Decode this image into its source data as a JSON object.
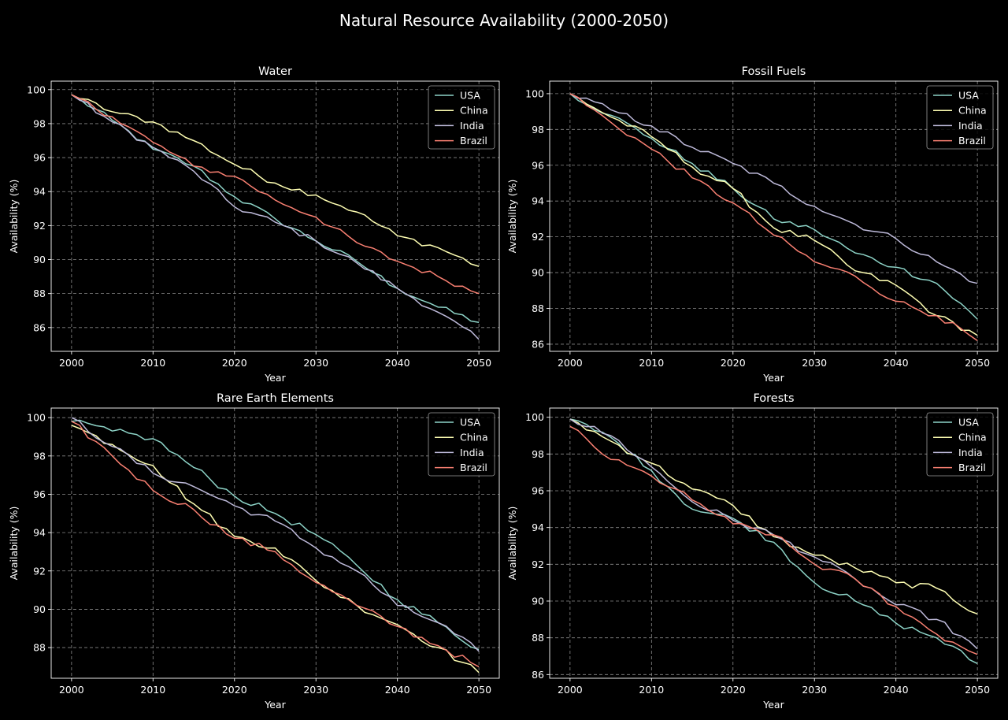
{
  "figure_title": "Natural Resource Availability (2000-2050)",
  "colors": {
    "background": "#000000",
    "text": "#ffffff",
    "grid": "#8a8a8a",
    "USA": "#8dd3c7",
    "China": "#ffffb3",
    "India": "#bebada",
    "Brazil": "#fa8072"
  },
  "chart_data": [
    {
      "type": "line",
      "title": "Water",
      "xlabel": "Year",
      "ylabel": "Availability (%)",
      "xlim": [
        1997.5,
        2052.5
      ],
      "ylim": [
        84.6,
        100.5
      ],
      "xticks": [
        2000,
        2010,
        2020,
        2030,
        2040,
        2050
      ],
      "yticks": [
        86,
        88,
        90,
        92,
        94,
        96,
        98,
        100
      ],
      "grid": true,
      "legend_position": "top-right",
      "x_start": 2000,
      "x_end": 2050,
      "series": [
        {
          "name": "USA",
          "key_points": [
            [
              2000,
              99.7
            ],
            [
              2005,
              98.2
            ],
            [
              2010,
              96.5
            ],
            [
              2015,
              95.5
            ],
            [
              2020,
              93.7
            ],
            [
              2025,
              92.4
            ],
            [
              2030,
              91.1
            ],
            [
              2035,
              89.9
            ],
            [
              2040,
              88.3
            ],
            [
              2045,
              87.2
            ],
            [
              2050,
              86.3
            ]
          ]
        },
        {
          "name": "China",
          "key_points": [
            [
              2000,
              99.7
            ],
            [
              2005,
              98.7
            ],
            [
              2010,
              98.1
            ],
            [
              2015,
              97.0
            ],
            [
              2020,
              95.6
            ],
            [
              2025,
              94.5
            ],
            [
              2030,
              93.8
            ],
            [
              2035,
              92.8
            ],
            [
              2040,
              91.4
            ],
            [
              2045,
              90.7
            ],
            [
              2050,
              89.6
            ]
          ]
        },
        {
          "name": "India",
          "key_points": [
            [
              2000,
              99.7
            ],
            [
              2005,
              98.1
            ],
            [
              2010,
              96.6
            ],
            [
              2015,
              95.2
            ],
            [
              2020,
              93.1
            ],
            [
              2025,
              92.2
            ],
            [
              2030,
              91.1
            ],
            [
              2035,
              89.8
            ],
            [
              2040,
              88.3
            ],
            [
              2045,
              86.9
            ],
            [
              2050,
              85.3
            ]
          ]
        },
        {
          "name": "Brazil",
          "key_points": [
            [
              2000,
              99.7
            ],
            [
              2005,
              98.4
            ],
            [
              2010,
              96.9
            ],
            [
              2015,
              95.5
            ],
            [
              2020,
              94.9
            ],
            [
              2025,
              93.5
            ],
            [
              2030,
              92.5
            ],
            [
              2035,
              91.0
            ],
            [
              2040,
              89.9
            ],
            [
              2045,
              89.0
            ],
            [
              2050,
              88.0
            ]
          ]
        }
      ]
    },
    {
      "type": "line",
      "title": "Fossil Fuels",
      "xlabel": "Year",
      "ylabel": "Availability (%)",
      "xlim": [
        1997.5,
        2052.5
      ],
      "ylim": [
        85.6,
        100.7
      ],
      "xticks": [
        2000,
        2010,
        2020,
        2030,
        2040,
        2050
      ],
      "yticks": [
        86,
        88,
        90,
        92,
        94,
        96,
        98,
        100
      ],
      "grid": true,
      "legend_position": "top-right",
      "x_start": 2000,
      "x_end": 2050,
      "series": [
        {
          "name": "USA",
          "key_points": [
            [
              2000,
              100.0
            ],
            [
              2005,
              98.8
            ],
            [
              2010,
              97.5
            ],
            [
              2015,
              96.1
            ],
            [
              2020,
              94.7
            ],
            [
              2025,
              93.0
            ],
            [
              2030,
              92.4
            ],
            [
              2035,
              91.1
            ],
            [
              2040,
              90.3
            ],
            [
              2045,
              89.4
            ],
            [
              2050,
              87.4
            ]
          ]
        },
        {
          "name": "China",
          "key_points": [
            [
              2000,
              100.0
            ],
            [
              2005,
              98.7
            ],
            [
              2010,
              97.6
            ],
            [
              2015,
              95.9
            ],
            [
              2020,
              94.7
            ],
            [
              2025,
              92.5
            ],
            [
              2030,
              91.8
            ],
            [
              2035,
              90.1
            ],
            [
              2040,
              89.3
            ],
            [
              2045,
              87.6
            ],
            [
              2050,
              86.5
            ]
          ]
        },
        {
          "name": "India",
          "key_points": [
            [
              2000,
              100.0
            ],
            [
              2005,
              99.1
            ],
            [
              2010,
              98.2
            ],
            [
              2015,
              97.0
            ],
            [
              2020,
              96.1
            ],
            [
              2025,
              95.0
            ],
            [
              2030,
              93.7
            ],
            [
              2035,
              92.7
            ],
            [
              2040,
              91.9
            ],
            [
              2045,
              90.6
            ],
            [
              2050,
              89.4
            ]
          ]
        },
        {
          "name": "Brazil",
          "key_points": [
            [
              2000,
              100.0
            ],
            [
              2005,
              98.4
            ],
            [
              2010,
              96.9
            ],
            [
              2015,
              95.3
            ],
            [
              2020,
              93.9
            ],
            [
              2025,
              92.1
            ],
            [
              2030,
              90.6
            ],
            [
              2035,
              89.8
            ],
            [
              2040,
              88.4
            ],
            [
              2045,
              87.6
            ],
            [
              2050,
              86.2
            ]
          ]
        }
      ]
    },
    {
      "type": "line",
      "title": "Rare Earth Elements",
      "xlabel": "Year",
      "ylabel": "Availability (%)",
      "xlim": [
        1997.5,
        2052.5
      ],
      "ylim": [
        86.4,
        100.5
      ],
      "xticks": [
        2000,
        2010,
        2020,
        2030,
        2040,
        2050
      ],
      "yticks": [
        88,
        90,
        92,
        94,
        96,
        98,
        100
      ],
      "grid": true,
      "legend_position": "top-right",
      "x_start": 2000,
      "x_end": 2050,
      "series": [
        {
          "name": "USA",
          "key_points": [
            [
              2000,
              99.8
            ],
            [
              2005,
              99.3
            ],
            [
              2010,
              98.9
            ],
            [
              2015,
              97.4
            ],
            [
              2020,
              95.9
            ],
            [
              2025,
              95.0
            ],
            [
              2030,
              93.9
            ],
            [
              2035,
              92.3
            ],
            [
              2040,
              90.5
            ],
            [
              2045,
              89.3
            ],
            [
              2050,
              87.9
            ]
          ]
        },
        {
          "name": "China",
          "key_points": [
            [
              2000,
              99.6
            ],
            [
              2005,
              98.6
            ],
            [
              2010,
              97.5
            ],
            [
              2015,
              95.5
            ],
            [
              2020,
              93.8
            ],
            [
              2025,
              93.2
            ],
            [
              2030,
              91.5
            ],
            [
              2035,
              90.2
            ],
            [
              2040,
              89.2
            ],
            [
              2045,
              88.0
            ],
            [
              2050,
              86.7
            ]
          ]
        },
        {
          "name": "India",
          "key_points": [
            [
              2000,
              100.0
            ],
            [
              2005,
              98.5
            ],
            [
              2010,
              97.1
            ],
            [
              2015,
              96.4
            ],
            [
              2020,
              95.4
            ],
            [
              2025,
              94.6
            ],
            [
              2030,
              93.2
            ],
            [
              2035,
              92.0
            ],
            [
              2040,
              90.2
            ],
            [
              2045,
              89.3
            ],
            [
              2050,
              87.8
            ]
          ]
        },
        {
          "name": "Brazil",
          "key_points": [
            [
              2000,
              99.8
            ],
            [
              2005,
              98.0
            ],
            [
              2010,
              96.2
            ],
            [
              2015,
              95.2
            ],
            [
              2020,
              93.7
            ],
            [
              2025,
              93.0
            ],
            [
              2030,
              91.4
            ],
            [
              2035,
              90.2
            ],
            [
              2040,
              89.1
            ],
            [
              2045,
              88.1
            ],
            [
              2050,
              87.0
            ]
          ]
        }
      ]
    },
    {
      "type": "line",
      "title": "Forests",
      "xlabel": "Year",
      "ylabel": "Availability (%)",
      "xlim": [
        1997.5,
        2052.5
      ],
      "ylim": [
        85.8,
        100.5
      ],
      "xticks": [
        2000,
        2010,
        2020,
        2030,
        2040,
        2050
      ],
      "yticks": [
        86,
        88,
        90,
        92,
        94,
        96,
        98,
        100
      ],
      "grid": true,
      "legend_position": "top-right",
      "x_start": 2000,
      "x_end": 2050,
      "series": [
        {
          "name": "USA",
          "key_points": [
            [
              2000,
              99.9
            ],
            [
              2005,
              98.9
            ],
            [
              2010,
              97.1
            ],
            [
              2015,
              95.0
            ],
            [
              2020,
              94.5
            ],
            [
              2025,
              93.2
            ],
            [
              2030,
              91.0
            ],
            [
              2035,
              90.0
            ],
            [
              2040,
              88.8
            ],
            [
              2045,
              88.0
            ],
            [
              2050,
              86.6
            ]
          ]
        },
        {
          "name": "China",
          "key_points": [
            [
              2000,
              99.9
            ],
            [
              2005,
              98.7
            ],
            [
              2010,
              97.5
            ],
            [
              2015,
              96.1
            ],
            [
              2020,
              95.2
            ],
            [
              2025,
              93.5
            ],
            [
              2030,
              92.5
            ],
            [
              2035,
              91.8
            ],
            [
              2040,
              91.0
            ],
            [
              2045,
              90.7
            ],
            [
              2050,
              89.3
            ]
          ]
        },
        {
          "name": "India",
          "key_points": [
            [
              2000,
              99.9
            ],
            [
              2005,
              99.0
            ],
            [
              2010,
              97.3
            ],
            [
              2015,
              95.4
            ],
            [
              2020,
              94.4
            ],
            [
              2025,
              93.6
            ],
            [
              2030,
              92.4
            ],
            [
              2035,
              91.2
            ],
            [
              2040,
              89.8
            ],
            [
              2045,
              89.0
            ],
            [
              2050,
              87.4
            ]
          ]
        },
        {
          "name": "Brazil",
          "key_points": [
            [
              2000,
              99.5
            ],
            [
              2005,
              97.7
            ],
            [
              2010,
              96.8
            ],
            [
              2015,
              95.5
            ],
            [
              2020,
              94.2
            ],
            [
              2025,
              93.6
            ],
            [
              2030,
              92.0
            ],
            [
              2035,
              91.2
            ],
            [
              2040,
              89.7
            ],
            [
              2045,
              88.2
            ],
            [
              2050,
              87.1
            ]
          ]
        }
      ]
    }
  ]
}
